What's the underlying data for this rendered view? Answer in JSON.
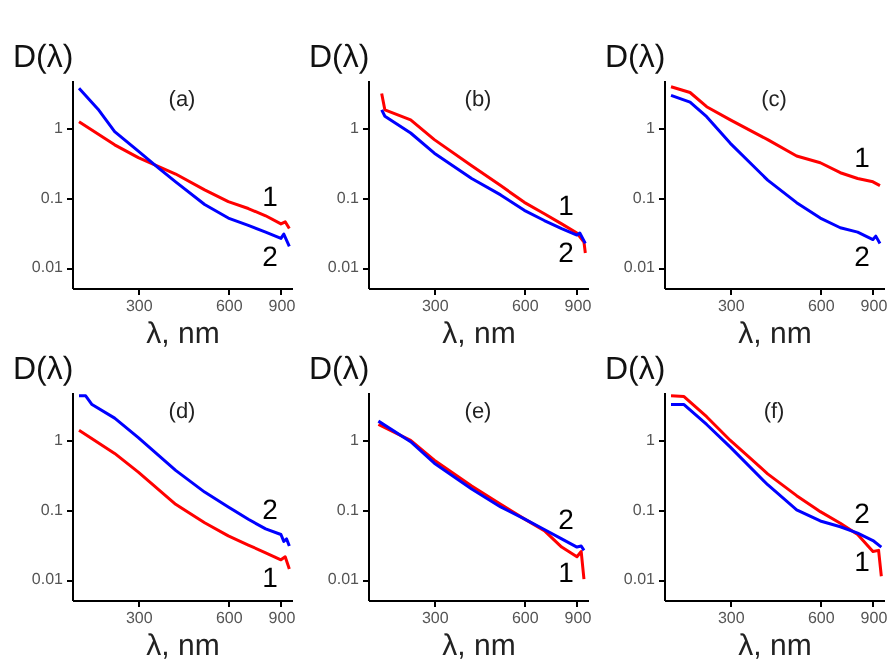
{
  "chart_data": [
    {
      "type": "line",
      "title": "(a)",
      "xlabel": "λ, nm",
      "ylabel": "D(λ)",
      "log": "xy",
      "legend": false,
      "xlim": [
        180,
        980
      ],
      "ylim": [
        0.005,
        5
      ],
      "xticks": [
        300,
        600,
        900
      ],
      "yticks": [
        0.01,
        0.1,
        1
      ],
      "series": [
        {
          "name": "1",
          "color": "#ff0000",
          "x": [
            190,
            250,
            300,
            400,
            500,
            600,
            700,
            800,
            900,
            930,
            960
          ],
          "values": [
            1.25,
            0.58,
            0.38,
            0.22,
            0.13,
            0.088,
            0.07,
            0.055,
            0.042,
            0.045,
            0.036
          ]
        },
        {
          "name": "2",
          "color": "#0000ff",
          "x": [
            190,
            220,
            250,
            300,
            350,
            400,
            500,
            600,
            700,
            800,
            900,
            920,
            960
          ],
          "values": [
            3.8,
            1.9,
            0.9,
            0.47,
            0.27,
            0.17,
            0.08,
            0.051,
            0.04,
            0.032,
            0.026,
            0.03,
            0.02
          ]
        }
      ]
    },
    {
      "type": "line",
      "title": "(b)",
      "xlabel": "λ, nm",
      "ylabel": "D(λ)",
      "log": "xy",
      "legend": false,
      "xlim": [
        180,
        980
      ],
      "ylim": [
        0.005,
        5
      ],
      "xticks": [
        300,
        600,
        900
      ],
      "yticks": [
        0.01,
        0.1,
        1
      ],
      "series": [
        {
          "name": "1",
          "color": "#ff0000",
          "x": [
            200,
            205,
            250,
            300,
            400,
            500,
            600,
            700,
            800,
            900,
            950,
            960
          ],
          "values": [
            3.2,
            1.85,
            1.33,
            0.69,
            0.29,
            0.15,
            0.086,
            0.059,
            0.042,
            0.031,
            0.023,
            0.016
          ]
        },
        {
          "name": "2",
          "color": "#0000ff",
          "x": [
            200,
            205,
            250,
            300,
            400,
            500,
            600,
            700,
            800,
            900,
            920,
            960
          ],
          "values": [
            1.85,
            1.5,
            0.86,
            0.44,
            0.19,
            0.11,
            0.066,
            0.047,
            0.036,
            0.029,
            0.031,
            0.022
          ]
        }
      ]
    },
    {
      "type": "line",
      "title": "(c)",
      "xlabel": "λ, nm",
      "ylabel": "D(λ)",
      "log": "xy",
      "legend": false,
      "xlim": [
        180,
        980
      ],
      "ylim": [
        0.005,
        5
      ],
      "xticks": [
        300,
        600,
        900
      ],
      "yticks": [
        0.01,
        0.1,
        1
      ],
      "series": [
        {
          "name": "1",
          "color": "#ff0000",
          "x": [
            190,
            220,
            250,
            300,
            400,
            500,
            600,
            700,
            800,
            900,
            950
          ],
          "values": [
            4.0,
            3.3,
            2.06,
            1.33,
            0.69,
            0.4,
            0.32,
            0.23,
            0.19,
            0.17,
            0.15
          ]
        },
        {
          "name": "2",
          "color": "#0000ff",
          "x": [
            190,
            220,
            250,
            300,
            400,
            500,
            600,
            700,
            800,
            900,
            920,
            950
          ],
          "values": [
            3.0,
            2.4,
            1.48,
            0.61,
            0.18,
            0.085,
            0.051,
            0.037,
            0.032,
            0.025,
            0.028,
            0.022
          ]
        }
      ]
    },
    {
      "type": "line",
      "title": "(d)",
      "xlabel": "λ, nm",
      "ylabel": "D(λ)",
      "log": "xy",
      "legend": false,
      "xlim": [
        180,
        980
      ],
      "ylim": [
        0.005,
        5
      ],
      "xticks": [
        300,
        600,
        900
      ],
      "yticks": [
        0.01,
        0.1,
        1
      ],
      "series": [
        {
          "name": "1",
          "color": "#ff0000",
          "x": [
            190,
            250,
            300,
            400,
            500,
            600,
            700,
            800,
            900,
            930,
            960
          ],
          "values": [
            1.4,
            0.65,
            0.35,
            0.12,
            0.065,
            0.042,
            0.031,
            0.024,
            0.019,
            0.021,
            0.014
          ]
        },
        {
          "name": "2",
          "color": "#0000ff",
          "x": [
            190,
            200,
            210,
            250,
            300,
            400,
            500,
            600,
            700,
            800,
            900,
            920,
            940,
            960
          ],
          "values": [
            4.4,
            4.4,
            3.3,
            2.1,
            1.1,
            0.37,
            0.18,
            0.11,
            0.073,
            0.053,
            0.044,
            0.035,
            0.038,
            0.03
          ]
        }
      ]
    },
    {
      "type": "line",
      "title": "(e)",
      "xlabel": "λ, nm",
      "ylabel": "D(λ)",
      "log": "xy",
      "legend": false,
      "xlim": [
        180,
        980
      ],
      "ylim": [
        0.005,
        5
      ],
      "xticks": [
        300,
        600,
        900
      ],
      "yticks": [
        0.01,
        0.1,
        1
      ],
      "series": [
        {
          "name": "1",
          "color": "#ff0000",
          "x": [
            195,
            250,
            300,
            400,
            500,
            600,
            700,
            800,
            900,
            930,
            950
          ],
          "values": [
            1.7,
            1.0,
            0.52,
            0.22,
            0.12,
            0.074,
            0.05,
            0.029,
            0.021,
            0.025,
            0.01
          ]
        },
        {
          "name": "2",
          "color": "#0000ff",
          "x": [
            195,
            250,
            300,
            400,
            500,
            600,
            700,
            800,
            900,
            930,
            950
          ],
          "values": [
            1.9,
            0.96,
            0.47,
            0.2,
            0.11,
            0.074,
            0.052,
            0.038,
            0.029,
            0.03,
            0.026
          ]
        }
      ]
    },
    {
      "type": "line",
      "title": "(f)",
      "xlabel": "λ, nm",
      "ylabel": "D(λ)",
      "log": "xy",
      "legend": false,
      "xlim": [
        180,
        980
      ],
      "ylim": [
        0.005,
        5
      ],
      "xticks": [
        300,
        600,
        900
      ],
      "yticks": [
        0.01,
        0.1,
        1
      ],
      "series": [
        {
          "name": "1",
          "color": "#ff0000",
          "x": [
            190,
            210,
            250,
            300,
            400,
            500,
            600,
            700,
            800,
            900,
            940,
            960
          ],
          "values": [
            4.4,
            4.3,
            2.2,
            1.0,
            0.33,
            0.16,
            0.094,
            0.064,
            0.044,
            0.025,
            0.026,
            0.011
          ]
        },
        {
          "name": "2",
          "color": "#0000ff",
          "x": [
            190,
            210,
            250,
            300,
            400,
            500,
            600,
            700,
            800,
            900,
            960
          ],
          "values": [
            3.3,
            3.3,
            1.7,
            0.8,
            0.23,
            0.1,
            0.069,
            0.057,
            0.046,
            0.036,
            0.029
          ]
        }
      ]
    }
  ]
}
